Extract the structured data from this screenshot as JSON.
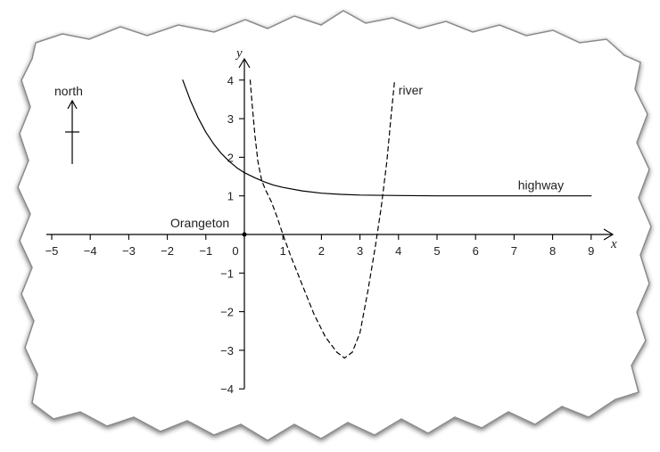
{
  "chart_data": {
    "type": "line",
    "xlabel": "x",
    "ylabel": "y",
    "xlim": [
      -5,
      9
    ],
    "ylim": [
      -4,
      4
    ],
    "x_ticks": [
      -5,
      -4,
      -3,
      -2,
      -1,
      0,
      1,
      2,
      3,
      4,
      5,
      6,
      7,
      8,
      9
    ],
    "y_ticks": [
      -4,
      -3,
      -2,
      -1,
      1,
      2,
      3,
      4
    ],
    "grid": false,
    "origin_label": "Orangeton",
    "compass_label": "north",
    "series": [
      {
        "name": "highway",
        "style": "solid",
        "color": "#000000",
        "points": [
          [
            -1.6,
            4.0
          ],
          [
            -1.4,
            3.47
          ],
          [
            -1.2,
            3.02
          ],
          [
            -1.0,
            2.65
          ],
          [
            -0.8,
            2.35
          ],
          [
            -0.6,
            2.1
          ],
          [
            -0.4,
            1.9
          ],
          [
            -0.2,
            1.73
          ],
          [
            0,
            1.6
          ],
          [
            0.25,
            1.48
          ],
          [
            0.5,
            1.37
          ],
          [
            0.75,
            1.28
          ],
          [
            1,
            1.22
          ],
          [
            1.5,
            1.13
          ],
          [
            2,
            1.07
          ],
          [
            2.5,
            1.04
          ],
          [
            3,
            1.02
          ],
          [
            4,
            1.01
          ],
          [
            5,
            1.0
          ],
          [
            9,
            1.0
          ]
        ]
      },
      {
        "name": "river",
        "style": "dashed",
        "color": "#000000",
        "points": [
          [
            0.15,
            4.0
          ],
          [
            0.2,
            3.4
          ],
          [
            0.27,
            2.6
          ],
          [
            0.35,
            1.9
          ],
          [
            0.45,
            1.4
          ],
          [
            0.55,
            1.15
          ],
          [
            0.7,
            0.85
          ],
          [
            0.85,
            0.45
          ],
          [
            1.0,
            0.0
          ],
          [
            1.2,
            -0.55
          ],
          [
            1.5,
            -1.3
          ],
          [
            1.8,
            -2.05
          ],
          [
            2.1,
            -2.65
          ],
          [
            2.4,
            -3.05
          ],
          [
            2.6,
            -3.2
          ],
          [
            2.8,
            -3.05
          ],
          [
            3.0,
            -2.55
          ],
          [
            3.2,
            -1.5
          ],
          [
            3.4,
            -0.3
          ],
          [
            3.55,
            0.7
          ],
          [
            3.7,
            1.9
          ],
          [
            3.8,
            3.0
          ],
          [
            3.9,
            4.0
          ]
        ]
      }
    ]
  },
  "colors": {
    "paper": "#ffffff",
    "backdrop": "#ffffff",
    "torn_edge_shadow": "#9a9a9a",
    "ink": "#000000"
  }
}
